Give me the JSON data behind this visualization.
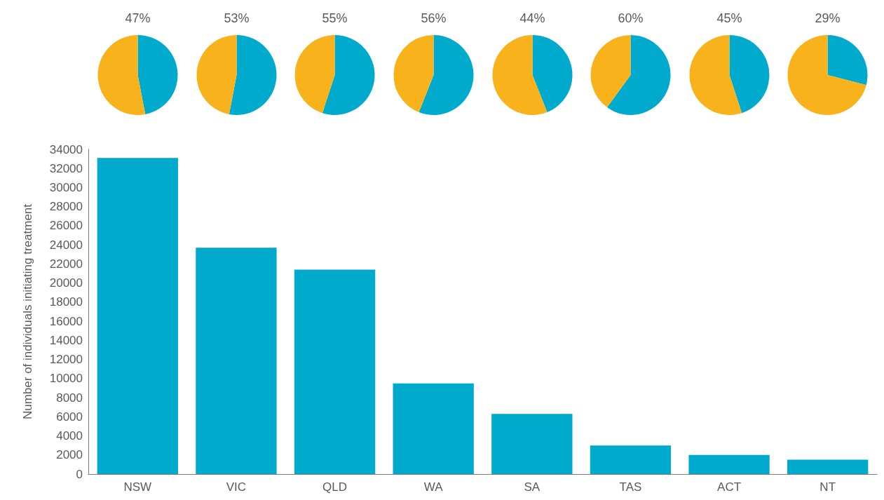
{
  "chart_data": [
    {
      "type": "bar",
      "ylabel": "Number of individuals initiating treatment",
      "categories": [
        "NSW",
        "VIC",
        "QLD",
        "WA",
        "SA",
        "TAS",
        "ACT",
        "NT"
      ],
      "values": [
        33100,
        23700,
        21400,
        9500,
        6300,
        3000,
        2000,
        1500
      ],
      "color": "#00aacc",
      "ylim": [
        0,
        34000
      ],
      "yticks": [
        0,
        2000,
        4000,
        6000,
        8000,
        10000,
        12000,
        14000,
        16000,
        18000,
        20000,
        22000,
        24000,
        26000,
        28000,
        30000,
        32000,
        34000
      ],
      "grid": false
    },
    {
      "type": "pie",
      "title": "47%",
      "categories": [
        null,
        null
      ],
      "values": [
        47,
        53
      ],
      "colors": [
        "#00aacc",
        "#f8b31c"
      ]
    },
    {
      "type": "pie",
      "title": "53%",
      "categories": [
        null,
        null
      ],
      "values": [
        53,
        47
      ],
      "colors": [
        "#00aacc",
        "#f8b31c"
      ]
    },
    {
      "type": "pie",
      "title": "55%",
      "categories": [
        null,
        null
      ],
      "values": [
        55,
        45
      ],
      "colors": [
        "#00aacc",
        "#f8b31c"
      ]
    },
    {
      "type": "pie",
      "title": "56%",
      "categories": [
        null,
        null
      ],
      "values": [
        56,
        44
      ],
      "colors": [
        "#00aacc",
        "#f8b31c"
      ]
    },
    {
      "type": "pie",
      "title": "44%",
      "categories": [
        null,
        null
      ],
      "values": [
        44,
        56
      ],
      "colors": [
        "#00aacc",
        "#f8b31c"
      ]
    },
    {
      "type": "pie",
      "title": "60%",
      "categories": [
        null,
        null
      ],
      "values": [
        60,
        40
      ],
      "colors": [
        "#00aacc",
        "#f8b31c"
      ]
    },
    {
      "type": "pie",
      "title": "45%",
      "categories": [
        null,
        null
      ],
      "values": [
        45,
        55
      ],
      "colors": [
        "#00aacc",
        "#f8b31c"
      ]
    },
    {
      "type": "pie",
      "title": "29%",
      "categories": [
        null,
        null
      ],
      "values": [
        29,
        71
      ],
      "colors": [
        "#00aacc",
        "#f8b31c"
      ]
    }
  ]
}
